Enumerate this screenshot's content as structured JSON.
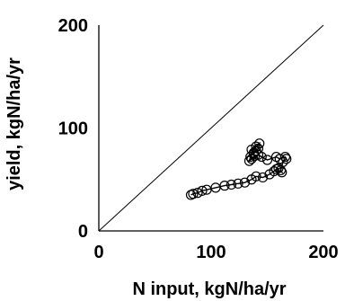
{
  "chart_data": {
    "type": "scatter",
    "xlabel": "N input, kgN/ha/yr",
    "ylabel": "yield, kgN/ha/yr",
    "xlim": [
      0,
      200
    ],
    "ylim": [
      0,
      200
    ],
    "xticks": [
      "0",
      "100",
      "200"
    ],
    "yticks": [
      "0",
      "100",
      "200"
    ],
    "grid": false,
    "legend": "none",
    "reference_line": {
      "from": [
        0,
        0
      ],
      "to": [
        200,
        200
      ],
      "label": ""
    },
    "series": [
      {
        "marker": "open-circle",
        "connected": true,
        "points": [
          [
            82,
            35
          ],
          [
            84,
            36
          ],
          [
            88,
            37
          ],
          [
            92,
            39
          ],
          [
            96,
            40
          ],
          [
            104,
            42
          ],
          [
            112,
            44
          ],
          [
            118,
            45
          ],
          [
            124,
            46
          ],
          [
            130,
            47
          ],
          [
            136,
            50
          ],
          [
            140,
            53
          ],
          [
            146,
            52
          ],
          [
            152,
            55
          ],
          [
            156,
            58
          ],
          [
            160,
            61
          ],
          [
            158,
            60
          ],
          [
            163,
            57
          ],
          [
            162,
            59
          ],
          [
            164,
            67
          ],
          [
            167,
            70
          ],
          [
            166,
            72
          ],
          [
            161,
            70
          ],
          [
            158,
            72
          ],
          [
            150,
            69
          ],
          [
            145,
            72
          ],
          [
            142,
            74
          ],
          [
            139,
            73
          ],
          [
            136,
            70
          ],
          [
            134,
            68
          ],
          [
            135,
            72
          ],
          [
            138,
            76
          ],
          [
            136,
            79
          ],
          [
            140,
            82
          ],
          [
            143,
            85
          ],
          [
            142,
            80
          ],
          [
            140,
            78
          ],
          [
            138,
            75
          ]
        ]
      }
    ]
  }
}
